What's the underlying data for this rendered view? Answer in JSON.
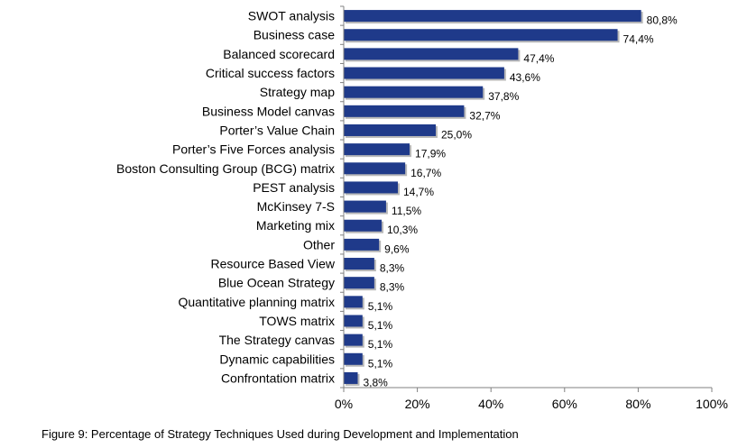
{
  "chart_data": {
    "type": "bar",
    "orientation": "horizontal",
    "categories": [
      "SWOT analysis",
      "Business case",
      "Balanced scorecard",
      "Critical success factors",
      "Strategy map",
      "Business Model canvas",
      "Porter’s Value Chain",
      "Porter’s Five Forces analysis",
      "Boston Consulting Group (BCG) matrix",
      "PEST analysis",
      "McKinsey 7-S",
      "Marketing mix",
      "Other",
      "Resource Based View",
      "Blue Ocean Strategy",
      "Quantitative planning matrix",
      "TOWS matrix",
      "The Strategy canvas",
      "Dynamic capabilities",
      "Confrontation matrix"
    ],
    "values": [
      80.8,
      74.4,
      47.4,
      43.6,
      37.8,
      32.7,
      25.0,
      17.9,
      16.7,
      14.7,
      11.5,
      10.3,
      9.6,
      8.3,
      8.3,
      5.1,
      5.1,
      5.1,
      5.1,
      3.8
    ],
    "value_labels": [
      "80,8%",
      "74,4%",
      "47,4%",
      "43,6%",
      "37,8%",
      "32,7%",
      "25,0%",
      "17,9%",
      "16,7%",
      "14,7%",
      "11,5%",
      "10,3%",
      "9,6%",
      "8,3%",
      "8,3%",
      "5,1%",
      "5,1%",
      "5,1%",
      "5,1%",
      "3,8%"
    ],
    "xlim": [
      0,
      100
    ],
    "x_ticks": [
      "0%",
      "20%",
      "40%",
      "60%",
      "80%",
      "100%"
    ],
    "x_tick_values": [
      0,
      20,
      40,
      60,
      80,
      100
    ],
    "grid": false,
    "legend": "none",
    "bar_color": "#1f3a8a"
  },
  "caption": "Figure 9: Percentage of Strategy Techniques Used during Development and Implementation"
}
